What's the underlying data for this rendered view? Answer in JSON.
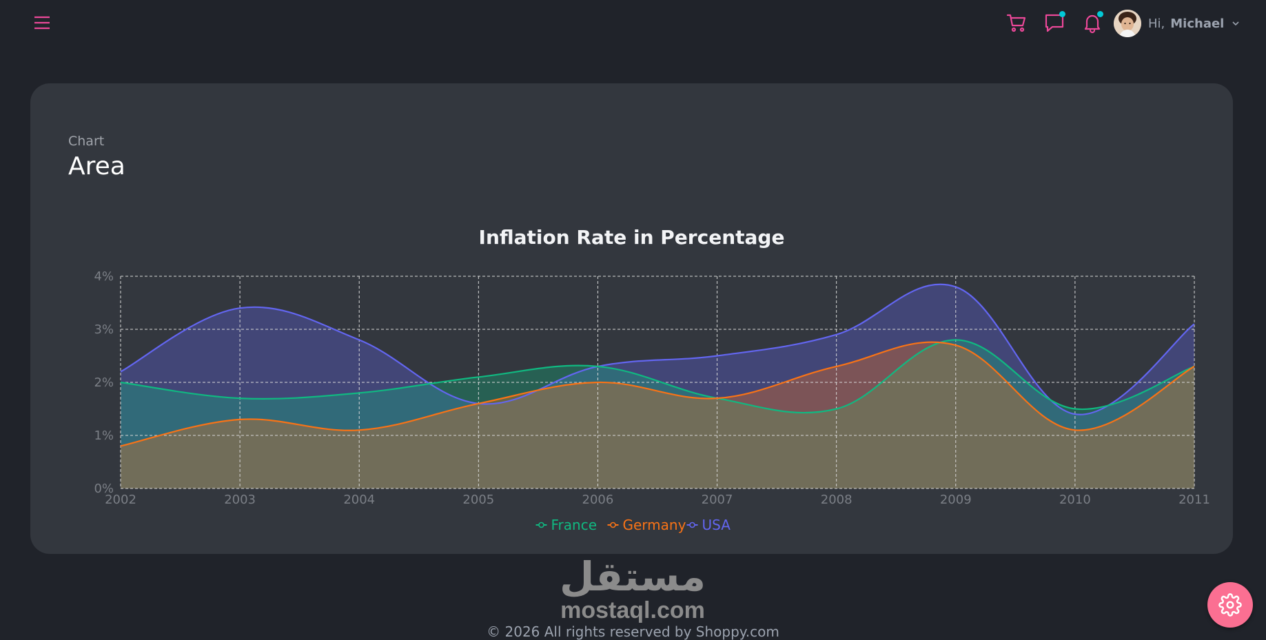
{
  "header": {
    "greeting": "Hi,",
    "user_name": "Michael",
    "accent_color": "#ec4899",
    "notification_dot_color": "#03c9d7",
    "icons": [
      "menu-icon",
      "cart-icon",
      "chat-icon",
      "bell-icon",
      "avatar",
      "chevron-down-icon"
    ]
  },
  "card": {
    "subtitle": "Chart",
    "title": "Area"
  },
  "chart_data": {
    "type": "area",
    "title": "Inflation Rate in Percentage",
    "x": [
      "2002",
      "2003",
      "2004",
      "2005",
      "2006",
      "2007",
      "2008",
      "2009",
      "2010",
      "2011"
    ],
    "series": [
      {
        "name": "USA",
        "color": "#6366f1",
        "values": [
          2.2,
          3.4,
          2.8,
          1.6,
          2.3,
          2.5,
          2.9,
          3.8,
          1.4,
          3.1
        ]
      },
      {
        "name": "France",
        "color": "#10b981",
        "values": [
          2.0,
          1.7,
          1.8,
          2.1,
          2.3,
          1.7,
          1.5,
          2.8,
          1.5,
          2.3
        ]
      },
      {
        "name": "Germany",
        "color": "#f97316",
        "values": [
          0.8,
          1.3,
          1.1,
          1.6,
          2.0,
          1.7,
          2.3,
          2.7,
          1.1,
          2.3
        ]
      }
    ],
    "legend_order": [
      "France",
      "Germany",
      "USA"
    ],
    "y_ticks": [
      "0%",
      "1%",
      "2%",
      "3%",
      "4%"
    ],
    "ylim": [
      0,
      4
    ],
    "grid": true,
    "grid_style": "dashed",
    "legend_position": "bottom"
  },
  "footer": {
    "watermark_arabic": "مستقل",
    "watermark_latin": "mostaql.com",
    "copyright": "© 2026 All rights reserved by Shoppy.com"
  },
  "settings": {
    "color": "#fb6f92",
    "icon": "gear-icon"
  }
}
